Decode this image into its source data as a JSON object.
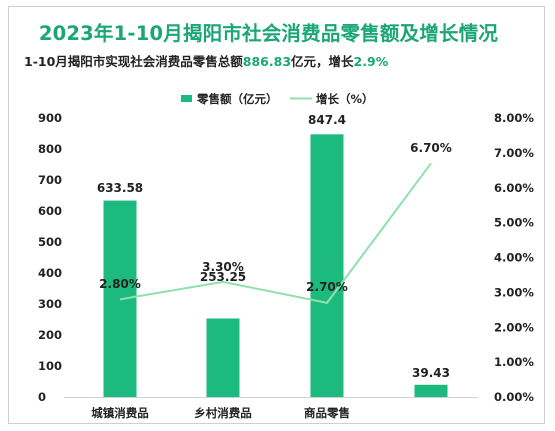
{
  "title": "2023年1-10月揭阳市社会消费品零售额及增长情况",
  "subtitle": {
    "prefix": "1-10月揭阳市实现社会消费品零售总额",
    "total": "886.83",
    "mid": "亿元，增长",
    "growth": "2.9%"
  },
  "colors": {
    "bar": "#1dba7f",
    "line": "#8fe0ad",
    "title": "#1aa675"
  },
  "chart_data": {
    "type": "bar+line",
    "categories": [
      "城镇消费品",
      "乡村消费品",
      "商品零售",
      ""
    ],
    "series": [
      {
        "name": "零售额（亿元）",
        "type": "bar",
        "axis": "left",
        "values": [
          633.58,
          253.25,
          847.4,
          39.43
        ],
        "labels": [
          "633.58",
          "253.25",
          "847.4",
          "39.43"
        ]
      },
      {
        "name": "增长（%）",
        "type": "line",
        "axis": "right",
        "values": [
          2.8,
          3.3,
          2.7,
          6.7
        ],
        "labels": [
          "2.80%",
          "3.30%",
          "2.70%",
          "6.70%"
        ]
      }
    ],
    "y_left": {
      "min": 0,
      "max": 900,
      "ticks": [
        0,
        100,
        200,
        300,
        400,
        500,
        600,
        700,
        800,
        900
      ],
      "tick_labels": [
        "0",
        "100",
        "200",
        "300",
        "400",
        "500",
        "600",
        "700",
        "800",
        "900"
      ]
    },
    "y_right": {
      "min": 0,
      "max": 8,
      "ticks": [
        0,
        1,
        2,
        3,
        4,
        5,
        6,
        7,
        8
      ],
      "tick_labels": [
        "0.00%",
        "1.00%",
        "2.00%",
        "3.00%",
        "4.00%",
        "5.00%",
        "6.00%",
        "7.00%",
        "8.00%"
      ]
    },
    "legend_position": "top",
    "grid": false
  }
}
